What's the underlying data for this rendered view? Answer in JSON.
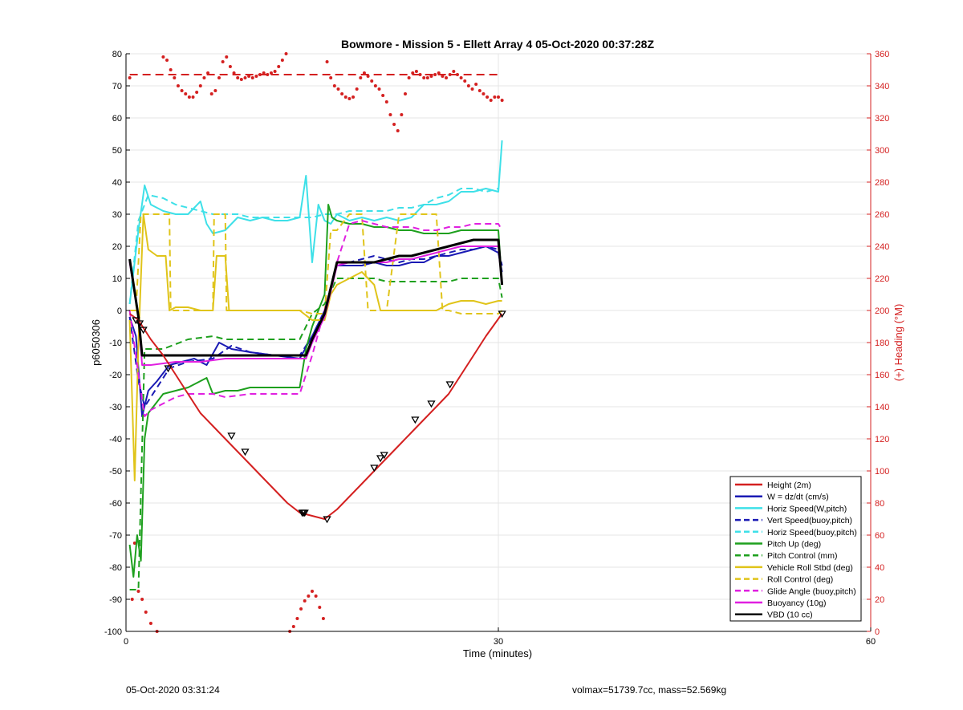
{
  "chart_data": {
    "type": "line",
    "title": "Bowmore - Mission 5 - Ellett Array 4 05-Oct-2020 00:37:28Z",
    "xlabel": "Time (minutes)",
    "ylabel": "p6050306",
    "y2label": "(+) Heading (°M)",
    "xlim": [
      0,
      60
    ],
    "ylim": [
      -100,
      80
    ],
    "y2lim": [
      0,
      360
    ],
    "xticks": [
      "0",
      "30",
      "60"
    ],
    "yticks": [
      "80",
      "70",
      "60",
      "50",
      "40",
      "30",
      "20",
      "10",
      "0",
      "-10",
      "-20",
      "-30",
      "-40",
      "-50",
      "-60",
      "-70",
      "-80",
      "-90",
      "-100"
    ],
    "y2ticks": [
      "360",
      "340",
      "320",
      "300",
      "280",
      "260",
      "240",
      "220",
      "200",
      "180",
      "160",
      "140",
      "120",
      "100",
      "80",
      "60",
      "40",
      "20",
      "0"
    ],
    "grid": true,
    "legend_position": "bottom-right",
    "legend": [
      {
        "label": "Height (2m)",
        "color": "#d42020",
        "dash": false
      },
      {
        "label": "W = dz/dt (cm/s)",
        "color": "#1a1ab4",
        "dash": false
      },
      {
        "label": "Horiz Speed(W,pitch)",
        "color": "#3ee0e8",
        "dash": false
      },
      {
        "label": "Vert Speed(buoy,pitch)",
        "color": "#1a1ab4",
        "dash": true
      },
      {
        "label": "Horiz Speed(buoy,pitch)",
        "color": "#3ee0e8",
        "dash": true
      },
      {
        "label": "Pitch Up (deg)",
        "color": "#1ea01e",
        "dash": false
      },
      {
        "label": "Pitch Control (mm)",
        "color": "#1ea01e",
        "dash": true
      },
      {
        "label": "Vehicle Roll Stbd (deg)",
        "color": "#e0c41a",
        "dash": false
      },
      {
        "label": "Roll Control (deg)",
        "color": "#e0c41a",
        "dash": true
      },
      {
        "label": "Glide Angle (buoy,pitch)",
        "color": "#e020e0",
        "dash": true
      },
      {
        "label": "Buoyancy (10g)",
        "color": "#e020e0",
        "dash": false
      },
      {
        "label": "VBD (10 cc)",
        "color": "#000000",
        "dash": false
      }
    ],
    "series": [
      {
        "name": "Height (2m)",
        "color": "#d42020",
        "width": 2,
        "dash": false,
        "x": [
          0.3,
          1.0,
          2.0,
          3.0,
          4.0,
          5.0,
          6.0,
          7.0,
          8.0,
          9.0,
          10.0,
          11.0,
          12.0,
          13.0,
          14.0,
          15.0,
          16.0,
          17.0,
          18.0,
          19.0,
          20.0,
          21.0,
          22.0,
          23.0,
          24.0,
          25.0,
          26.0,
          27.0,
          28.0,
          29.0,
          30.3
        ],
        "y": [
          -1,
          -3,
          -9,
          -14,
          -20,
          -26,
          -32,
          -36,
          -40,
          -44,
          -48,
          -52,
          -56,
          -60,
          -63,
          -64,
          -65,
          -62,
          -58,
          -54,
          -50,
          -46,
          -42,
          -38,
          -34,
          -30,
          -26,
          -20,
          -14,
          -8,
          -1
        ]
      },
      {
        "name": "W = dz/dt (cm/s)",
        "color": "#1a1ab4",
        "width": 2,
        "dash": false,
        "x": [
          0.3,
          0.8,
          1.3,
          1.8,
          2.5,
          3.5,
          4.5,
          5.5,
          6.5,
          7.5,
          8.5,
          10,
          12,
          14,
          15,
          16,
          17,
          18,
          19,
          20,
          21,
          22,
          23,
          24,
          25,
          26,
          27,
          28,
          29,
          30,
          30.3
        ],
        "y": [
          -2,
          -8,
          -33,
          -25,
          -22,
          -17,
          -16,
          -15,
          -17,
          -10,
          -12,
          -13,
          -14,
          -15,
          -8,
          0,
          14,
          14,
          14,
          15,
          14,
          14,
          15,
          15,
          17,
          17,
          18,
          19,
          20,
          18,
          12
        ]
      },
      {
        "name": "Horiz Speed(W,pitch)",
        "color": "#3ee0e8",
        "width": 2,
        "dash": false,
        "x": [
          0.3,
          1.0,
          1.5,
          2.0,
          3.0,
          4.0,
          5.0,
          6.0,
          6.5,
          7.0,
          8.0,
          9.0,
          10,
          11,
          12,
          13,
          14,
          14.5,
          15,
          15.5,
          16,
          16.5,
          17,
          18,
          19,
          20,
          21,
          22,
          23,
          24,
          25,
          26,
          27,
          28,
          29,
          30,
          30.3
        ],
        "y": [
          2,
          25,
          39,
          33,
          31,
          30,
          30,
          34,
          27,
          24,
          25,
          29,
          28,
          29,
          28,
          28,
          29,
          42,
          15,
          33,
          28,
          27,
          30,
          28,
          29,
          28,
          29,
          28,
          29,
          33,
          33,
          34,
          37,
          37,
          38,
          37,
          53
        ]
      },
      {
        "name": "Vert Speed(buoy,pitch)",
        "color": "#1a1ab4",
        "width": 2,
        "dash": true,
        "x": [
          0.3,
          1.0,
          1.5,
          2.5,
          3.5,
          5,
          7,
          8.5,
          10,
          12,
          14,
          15,
          16,
          17,
          18,
          19,
          20,
          21,
          22,
          23,
          24,
          25,
          26,
          27,
          28,
          29,
          30,
          30.3
        ],
        "y": [
          -2,
          -22,
          -30,
          -24,
          -18,
          -16,
          -15,
          -11,
          -13,
          -14,
          -14,
          -8,
          0,
          15,
          15,
          16,
          17,
          16,
          15,
          16,
          16,
          17,
          18,
          19,
          19,
          20,
          19,
          14
        ]
      },
      {
        "name": "Horiz Speed(buoy,pitch)",
        "color": "#3ee0e8",
        "width": 2,
        "dash": true,
        "x": [
          0.3,
          1.0,
          1.8,
          3,
          4,
          5,
          6,
          7,
          8,
          9,
          10,
          11,
          12,
          13,
          14,
          15,
          16,
          17,
          18,
          19,
          20,
          21,
          22,
          23,
          24,
          25,
          26,
          27,
          28,
          29,
          30
        ],
        "y": [
          2,
          28,
          36,
          35,
          33,
          32,
          31,
          30,
          30,
          30,
          29,
          29,
          29,
          29,
          29,
          29,
          30,
          30,
          31,
          31,
          31,
          31,
          32,
          32,
          33,
          35,
          36,
          38,
          38,
          37,
          38
        ]
      },
      {
        "name": "Pitch Up (deg)",
        "color": "#1ea01e",
        "width": 2,
        "dash": false,
        "x": [
          0.3,
          0.6,
          0.9,
          1.2,
          1.5,
          1.8,
          2.2,
          3,
          4,
          5,
          6,
          6.5,
          7,
          8,
          9,
          10,
          11,
          12,
          13,
          14,
          14.5,
          15,
          15.5,
          16,
          16.3,
          16.6,
          17,
          18,
          19,
          20,
          21,
          22,
          23,
          24,
          25,
          26,
          27,
          28,
          29,
          30,
          30.3
        ],
        "y": [
          -73,
          -83,
          -70,
          -78,
          -40,
          -32,
          -30,
          -26,
          -25,
          -24,
          -22,
          -21,
          -26,
          -25,
          -25,
          -24,
          -24,
          -24,
          -24,
          -24,
          -12,
          -5,
          0,
          5,
          33,
          29,
          28,
          27,
          27,
          26,
          26,
          25,
          25,
          24,
          24,
          24,
          25,
          25,
          25,
          25,
          8
        ]
      },
      {
        "name": "Pitch Control (mm)",
        "color": "#1ea01e",
        "width": 2,
        "dash": true,
        "x": [
          0.3,
          1.0,
          1.5,
          2.0,
          3.0,
          5.0,
          7.0,
          8.0,
          10,
          12,
          14,
          14.5,
          15,
          16,
          17,
          18,
          19,
          20,
          21,
          22,
          23,
          24,
          25,
          26,
          27,
          28,
          29,
          30,
          30.3
        ],
        "y": [
          -87,
          -87,
          -12,
          -12,
          -12,
          -9,
          -8,
          -9,
          -9,
          -9,
          -9,
          -5,
          -1,
          2,
          10,
          10,
          10,
          10,
          9,
          9,
          9,
          9,
          9,
          9,
          10,
          10,
          10,
          10,
          4
        ]
      },
      {
        "name": "Vehicle Roll Stbd (deg)",
        "color": "#e0c41a",
        "width": 2,
        "dash": false,
        "x": [
          0.3,
          0.7,
          1.0,
          1.4,
          1.8,
          2.5,
          3.2,
          3.5,
          4,
          5,
          6,
          7,
          7.3,
          8,
          8.3,
          9,
          10,
          12,
          14,
          15,
          16,
          16.5,
          17,
          18,
          19,
          20,
          20.5,
          21,
          22,
          23,
          24,
          25,
          26,
          27,
          28,
          29,
          30,
          30.3
        ],
        "y": [
          -3,
          -53,
          -10,
          30,
          19,
          17,
          17,
          0,
          1,
          1,
          0,
          0,
          17,
          17,
          0,
          0,
          0,
          0,
          0,
          -3,
          -3,
          5,
          8,
          10,
          12,
          8,
          0,
          0,
          0,
          0,
          0,
          0,
          2,
          3,
          3,
          2,
          3,
          3
        ]
      },
      {
        "name": "Roll Control (deg)",
        "color": "#e0c41a",
        "width": 2,
        "dash": true,
        "x": [
          0.3,
          0.8,
          1.2,
          1.6,
          2.0,
          3.0,
          3.5,
          3.6,
          7.0,
          7.1,
          8.0,
          8.1,
          12,
          14,
          15,
          16,
          16.5,
          17,
          18,
          19,
          19.5,
          20,
          21,
          22,
          23,
          24,
          25,
          25.5,
          26,
          27,
          28,
          29,
          30,
          30.3
        ],
        "y": [
          0,
          0,
          30,
          30,
          30,
          30,
          30,
          0,
          0,
          30,
          30,
          0,
          0,
          0,
          -1,
          -1,
          25,
          25,
          30,
          30,
          0,
          0,
          0,
          30,
          30,
          30,
          30,
          0,
          0,
          -1,
          -1,
          -1,
          -1,
          0
        ]
      },
      {
        "name": "Glide Angle (buoy,pitch)",
        "color": "#e020e0",
        "width": 2,
        "dash": true,
        "x": [
          0.3,
          1.0,
          1.5,
          2.0,
          3.0,
          4.0,
          5.0,
          6.0,
          7.0,
          8.0,
          10,
          12,
          14,
          15,
          16,
          17,
          18,
          19,
          20,
          21,
          22,
          23,
          24,
          25,
          26,
          27,
          28,
          29,
          30,
          30.3
        ],
        "y": [
          0,
          -20,
          -33,
          -31,
          -29,
          -27,
          -26,
          -26,
          -26,
          -27,
          -26,
          -26,
          -26,
          -14,
          0,
          15,
          27,
          28,
          27,
          26,
          26,
          26,
          25,
          25,
          26,
          26,
          27,
          27,
          27,
          25
        ]
      },
      {
        "name": "Buoyancy (10g)",
        "color": "#e020e0",
        "width": 2,
        "dash": false,
        "x": [
          0.3,
          1.0,
          1.3,
          2.0,
          4.0,
          6.0,
          8.0,
          10,
          12,
          14,
          14.5,
          15,
          16,
          17,
          18,
          19,
          20,
          21,
          22,
          23,
          24,
          25,
          26,
          27,
          28,
          29,
          30,
          30.3
        ],
        "y": [
          15,
          -2,
          -17,
          -17,
          -16,
          -16,
          -15,
          -15,
          -15,
          -15,
          -15,
          -10,
          -2,
          14,
          15,
          15,
          15,
          15,
          16,
          16,
          17,
          18,
          19,
          20,
          20,
          20,
          20,
          8
        ]
      },
      {
        "name": "VBD (10 cc)",
        "color": "#000000",
        "width": 3,
        "dash": false,
        "x": [
          0.3,
          1.0,
          1.3,
          2.0,
          4.0,
          6.0,
          8.0,
          10,
          12,
          14,
          14.5,
          15,
          16,
          17,
          18,
          19,
          20,
          21,
          22,
          23,
          24,
          25,
          26,
          27,
          28,
          29,
          30,
          30.3
        ],
        "y": [
          16,
          -2,
          -14,
          -14,
          -14,
          -14,
          -14,
          -14,
          -14,
          -14,
          -14,
          -9,
          -1,
          15,
          15,
          15,
          15,
          16,
          17,
          17,
          18,
          19,
          20,
          21,
          22,
          22,
          22,
          8
        ]
      }
    ],
    "heading_series": {
      "name": "(+) Heading (°M)",
      "color": "#d42020",
      "axis": "right",
      "x": [
        0.3,
        0.5,
        0.7,
        1.0,
        1.3,
        1.6,
        2.0,
        2.5,
        3.0,
        3.3,
        3.6,
        3.9,
        4.2,
        4.5,
        4.8,
        5.1,
        5.4,
        5.7,
        6.0,
        6.3,
        6.6,
        6.9,
        7.2,
        7.5,
        7.8,
        8.1,
        8.4,
        8.7,
        9.0,
        9.3,
        9.6,
        9.9,
        10.2,
        10.5,
        10.8,
        11.1,
        11.4,
        11.7,
        12.0,
        12.3,
        12.6,
        12.9,
        13.2,
        13.5,
        13.8,
        14.1,
        14.4,
        14.7,
        15.0,
        15.3,
        15.6,
        15.9,
        16.2,
        16.5,
        16.8,
        17.1,
        17.4,
        17.7,
        18.0,
        18.3,
        18.6,
        18.9,
        19.2,
        19.5,
        19.8,
        20.1,
        20.4,
        20.7,
        21.0,
        21.3,
        21.6,
        21.9,
        22.2,
        22.5,
        22.8,
        23.1,
        23.4,
        23.7,
        24.0,
        24.3,
        24.6,
        24.9,
        25.2,
        25.5,
        25.8,
        26.1,
        26.4,
        26.7,
        27.0,
        27.3,
        27.6,
        27.9,
        28.2,
        28.5,
        28.8,
        29.1,
        29.4,
        29.7,
        30.0,
        30.3
      ],
      "y": [
        345,
        20,
        55,
        25,
        20,
        12,
        5,
        0,
        358,
        356,
        350,
        345,
        340,
        337,
        335,
        333,
        333,
        336,
        340,
        345,
        348,
        335,
        337,
        345,
        355,
        358,
        352,
        348,
        345,
        344,
        345,
        346,
        345,
        346,
        347,
        348,
        347,
        348,
        349,
        352,
        356,
        360,
        0,
        3,
        8,
        14,
        19,
        22,
        25,
        22,
        15,
        8,
        355,
        345,
        340,
        338,
        335,
        333,
        332,
        333,
        338,
        345,
        348,
        346,
        343,
        340,
        338,
        334,
        330,
        322,
        316,
        312,
        322,
        335,
        345,
        348,
        349,
        347,
        345,
        345,
        346,
        347,
        348,
        346,
        345,
        347,
        349,
        347,
        345,
        343,
        340,
        338,
        341,
        337,
        335,
        333,
        331,
        333,
        333,
        331
      ]
    },
    "heading_reference_line": {
      "y2": 347,
      "color": "#d42020",
      "dash": true
    },
    "height_markers": {
      "x": [
        0.8,
        1.1,
        1.4,
        3.4,
        8.5,
        9.6,
        14.2,
        14.3,
        14.4,
        16.2,
        20.0,
        20.5,
        20.8,
        23.3,
        24.6,
        26.1,
        30.3
      ],
      "y": [
        -3,
        -4,
        -6,
        -18,
        -39,
        -44,
        -63,
        -63,
        -63,
        -65,
        -49,
        -46,
        -45,
        -34,
        -29,
        -23,
        -1
      ],
      "marker": "triangle"
    }
  },
  "footer": {
    "left": "05-Oct-2020 03:31:24",
    "right": "volmax=51739.7cc, mass=52.569kg"
  }
}
